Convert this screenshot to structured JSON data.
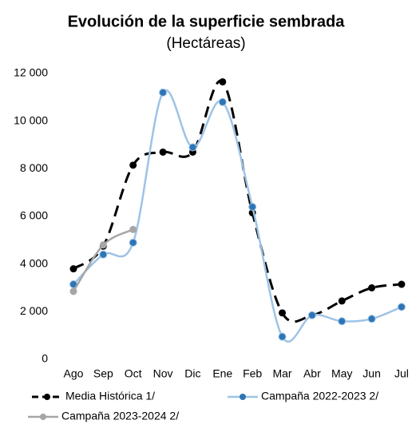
{
  "chart_data": {
    "type": "line",
    "title": "Evolución de la superficie sembrada",
    "subtitle": "(Hectáreas)",
    "categories": [
      "Ago",
      "Sep",
      "Oct",
      "Nov",
      "Dic",
      "Ene",
      "Feb",
      "Mar",
      "Abr",
      "May",
      "Jun",
      "Jul"
    ],
    "series": [
      {
        "name": "Media Histórica 1/",
        "color": "#000000",
        "dashed": true,
        "values": [
          3800,
          4750,
          8150,
          8700,
          8700,
          11650,
          6150,
          1950,
          1850,
          2450,
          3000,
          3150
        ]
      },
      {
        "name": "Campaña 2022-2023 2/",
        "color": "#9dc3e6",
        "marker_color": "#2e75b6",
        "values": [
          3150,
          4400,
          4900,
          11200,
          8900,
          10800,
          6400,
          950,
          1850,
          1600,
          1700,
          2200
        ]
      },
      {
        "name": "Campaña 2023-2024 2/",
        "color": "#a6a6a6",
        "values": [
          2850,
          4800,
          5450,
          null,
          null,
          null,
          null,
          null,
          null,
          null,
          null,
          null
        ]
      }
    ],
    "ylim": [
      0,
      12000
    ],
    "yticks": [
      0,
      {
        "value": 2000,
        "label": "2 000"
      },
      {
        "value": 4000,
        "label": "4 000"
      },
      {
        "value": 6000,
        "label": "6 000"
      },
      {
        "value": 8000,
        "label": "8 000"
      },
      {
        "value": 10000,
        "label": "10 000"
      },
      {
        "value": 12000,
        "label": "12 000"
      }
    ],
    "grid": false,
    "legend": "bottom"
  }
}
